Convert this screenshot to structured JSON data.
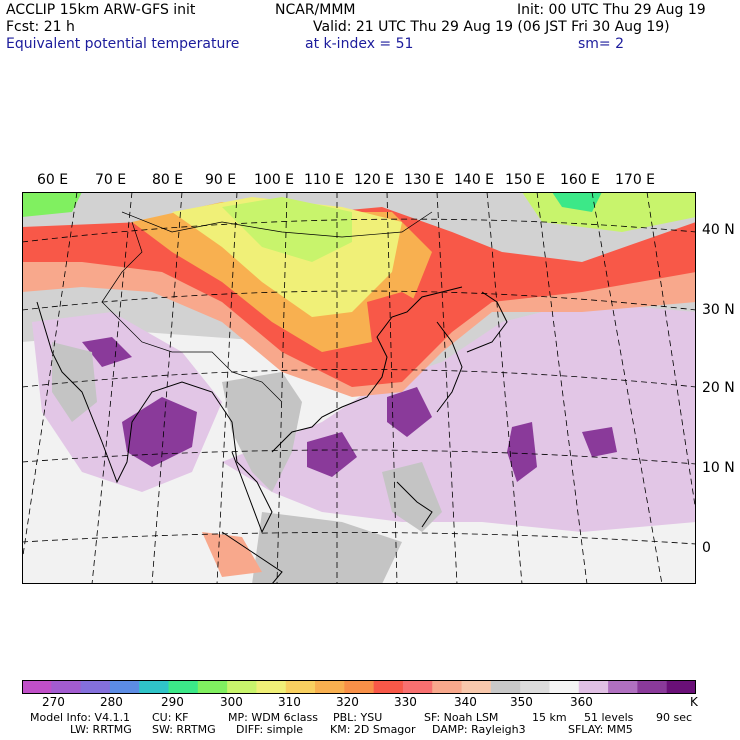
{
  "header": {
    "model": "ACCLIP 15km ARW-GFS init",
    "org": "NCAR/MMM",
    "init": "Init: 00 UTC Thu 29 Aug 19",
    "fcst": "Fcst:   21 h",
    "valid": "Valid: 21 UTC Thu 29 Aug 19 (06 JST Fri 30 Aug 19)",
    "field": "Equivalent potential temperature",
    "level": "at k-index =  51",
    "smooth": "sm= 2"
  },
  "map": {
    "lon_labels": [
      "60 E",
      "70 E",
      "80 E",
      "90 E",
      "100 E",
      "110 E",
      "120 E",
      "130 E",
      "140 E",
      "150 E",
      "160 E",
      "170 E"
    ],
    "lat_labels": [
      "40 N",
      "30 N",
      "20 N",
      "10 N",
      "0"
    ]
  },
  "colorbar": {
    "colors": [
      "#c04fc8",
      "#a25cd0",
      "#8470dc",
      "#5c8ce4",
      "#30c4c8",
      "#3ce888",
      "#80f060",
      "#c8f46c",
      "#f0f078",
      "#f8d060",
      "#f8b050",
      "#f89048",
      "#f85848",
      "#f87070",
      "#f8a88c",
      "#f8c8ac",
      "#c8c8c8",
      "#dcdcdc",
      "#f4f4f4",
      "#e0c0e4",
      "#b070c0",
      "#8a3a9a",
      "#6a1078"
    ],
    "tick_labels": [
      "270",
      "280",
      "290",
      "300",
      "310",
      "320",
      "330",
      "340",
      "350",
      "360"
    ],
    "units": "K"
  },
  "footer": {
    "line1": [
      "Model Info: V4.1.1",
      "CU: KF",
      "MP: WDM 6class",
      "PBL: YSU",
      "SF: Noah LSM",
      "15 km",
      "51 levels",
      "90 sec"
    ],
    "line2": [
      "LW: RRTMG",
      "SW: RRTMG",
      "DIFF: simple",
      "KM: 2D Smagor",
      "DAMP: Rayleigh3",
      "SFLAY: MM5"
    ]
  }
}
